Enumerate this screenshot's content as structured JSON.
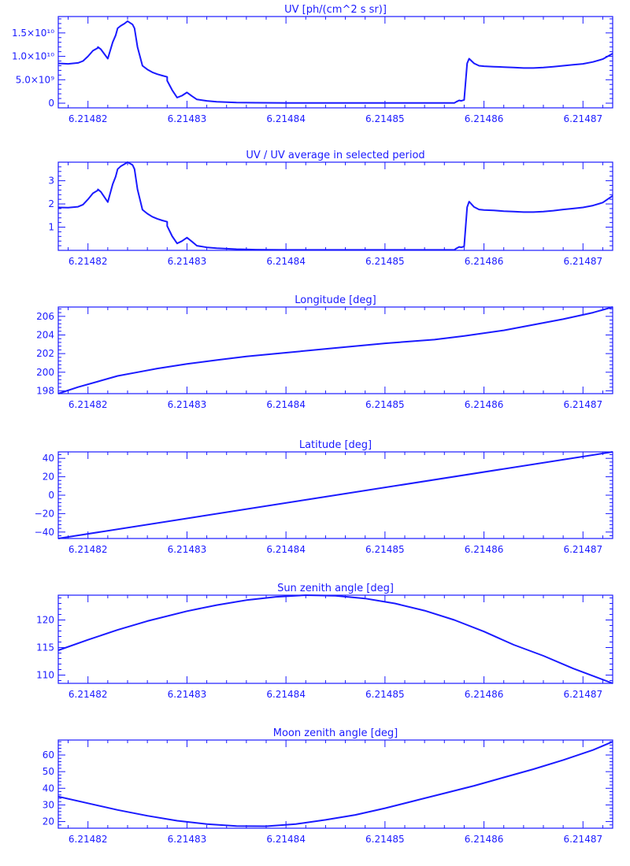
{
  "style": {
    "color": "#1a1aff",
    "background": "#ffffff"
  },
  "chart_data": [
    {
      "type": "line",
      "title": "UV [ph/(cm^2 s sr)]",
      "xlim": [
        6.214817,
        6.214873
      ],
      "ylim": [
        -1000000000.0,
        18500000000.0
      ],
      "x_ticks": [
        6.21482,
        6.21483,
        6.21484,
        6.21485,
        6.21486,
        6.21487
      ],
      "x_tick_labels": [
        "6.21482",
        "6.21483",
        "6.21484",
        "6.21485",
        "6.21486",
        "6.21487"
      ],
      "y_ticks": [
        0,
        5000000000.0,
        10000000000.0,
        15000000000.0
      ],
      "y_tick_labels": [
        "0",
        "5.0×10⁹",
        "1.0×10¹⁰",
        "1.5×10¹⁰"
      ],
      "series": [
        {
          "x": [
            6.214817,
            6.214818,
            6.214819,
            6.2148195,
            6.21482,
            6.2148205,
            6.214821,
            6.214821,
            6.2148213,
            6.214822,
            6.2148225,
            6.2148228,
            6.214823,
            6.2148233,
            6.2148237,
            6.214824,
            6.2148245,
            6.2148247,
            6.214825,
            6.2148255,
            6.214826,
            6.2148265,
            6.214827,
            6.2148275,
            6.214828,
            6.214828,
            6.2148285,
            6.214829,
            6.2148295,
            6.21483,
            6.2148305,
            6.214831,
            6.214832,
            6.214833,
            6.214835,
            6.214837,
            6.21484,
            6.214845,
            6.21485,
            6.214855,
            6.214857,
            6.2148572,
            6.2148575,
            6.2148577,
            6.214858,
            6.2148583,
            6.2148585,
            6.214859,
            6.2148595,
            6.21486,
            6.214861,
            6.214862,
            6.214863,
            6.214864,
            6.214865,
            6.214866,
            6.214867,
            6.214868,
            6.214869,
            6.21487,
            6.214871,
            6.214872,
            6.214873
          ],
          "y": [
            8500000000.0,
            8400000000.0,
            8600000000.0,
            9000000000.0,
            10000000000.0,
            11200000000.0,
            11800000000.0,
            12000000000.0,
            11500000000.0,
            9500000000.0,
            13000000000.0,
            14500000000.0,
            16000000000.0,
            16500000000.0,
            17000000000.0,
            17500000000.0,
            16800000000.0,
            16000000000.0,
            12000000000.0,
            8000000000.0,
            7200000000.0,
            6600000000.0,
            6200000000.0,
            5900000000.0,
            5600000000.0,
            4800000000.0,
            2800000000.0,
            1200000000.0,
            1600000000.0,
            2300000000.0,
            1500000000.0,
            800000000.0,
            500000000.0,
            300000000.0,
            150000000.0,
            100000000.0,
            50000000.0,
            50000000.0,
            50000000.0,
            50000000.0,
            50000000.0,
            300000000.0,
            600000000.0,
            500000000.0,
            700000000.0,
            8500000000.0,
            9500000000.0,
            8500000000.0,
            8000000000.0,
            7900000000.0,
            7800000000.0,
            7700000000.0,
            7600000000.0,
            7500000000.0,
            7500000000.0,
            7600000000.0,
            7800000000.0,
            8000000000.0,
            8200000000.0,
            8400000000.0,
            8800000000.0,
            9400000000.0,
            10600000000.0
          ]
        }
      ]
    },
    {
      "type": "line",
      "title": "UV / UV average in selected period",
      "xlim": [
        6.214817,
        6.214873
      ],
      "ylim": [
        0,
        3.8
      ],
      "x_ticks": [
        6.21482,
        6.21483,
        6.21484,
        6.21485,
        6.21486,
        6.21487
      ],
      "x_tick_labels": [
        "6.21482",
        "6.21483",
        "6.21484",
        "6.21485",
        "6.21486",
        "6.21487"
      ],
      "y_ticks": [
        1,
        2,
        3
      ],
      "y_tick_labels": [
        "1",
        "2",
        "3"
      ],
      "series": [
        {
          "x": [
            6.214817,
            6.214818,
            6.214819,
            6.2148195,
            6.21482,
            6.2148205,
            6.214821,
            6.214821,
            6.2148213,
            6.214822,
            6.2148225,
            6.2148228,
            6.214823,
            6.2148233,
            6.2148237,
            6.214824,
            6.2148245,
            6.2148247,
            6.214825,
            6.2148255,
            6.214826,
            6.2148265,
            6.214827,
            6.2148275,
            6.214828,
            6.214828,
            6.2148285,
            6.214829,
            6.2148295,
            6.21483,
            6.2148305,
            6.214831,
            6.214832,
            6.214833,
            6.214835,
            6.214837,
            6.21484,
            6.214845,
            6.21485,
            6.214855,
            6.214857,
            6.2148572,
            6.2148575,
            6.2148577,
            6.214858,
            6.2148583,
            6.2148585,
            6.214859,
            6.2148595,
            6.21486,
            6.214861,
            6.214862,
            6.214863,
            6.214864,
            6.214865,
            6.214866,
            6.214867,
            6.214868,
            6.214869,
            6.21487,
            6.214871,
            6.214872,
            6.214873
          ],
          "y": [
            1.85,
            1.84,
            1.88,
            1.97,
            2.2,
            2.46,
            2.59,
            2.63,
            2.52,
            2.08,
            2.85,
            3.18,
            3.5,
            3.62,
            3.72,
            3.8,
            3.68,
            3.5,
            2.63,
            1.75,
            1.58,
            1.45,
            1.36,
            1.29,
            1.23,
            1.05,
            0.61,
            0.3,
            0.4,
            0.55,
            0.38,
            0.2,
            0.13,
            0.09,
            0.05,
            0.03,
            0.02,
            0.02,
            0.02,
            0.02,
            0.02,
            0.08,
            0.15,
            0.13,
            0.17,
            1.86,
            2.1,
            1.87,
            1.76,
            1.74,
            1.72,
            1.69,
            1.67,
            1.65,
            1.65,
            1.67,
            1.71,
            1.76,
            1.8,
            1.85,
            1.93,
            2.06,
            2.35
          ]
        }
      ]
    },
    {
      "type": "line",
      "title": "Longitude [deg]",
      "xlim": [
        6.214817,
        6.214873
      ],
      "ylim": [
        197.7,
        207
      ],
      "x_ticks": [
        6.21482,
        6.21483,
        6.21484,
        6.21485,
        6.21486,
        6.21487
      ],
      "x_tick_labels": [
        "6.21482",
        "6.21483",
        "6.21484",
        "6.21485",
        "6.21486",
        "6.21487"
      ],
      "y_ticks": [
        198,
        200,
        202,
        204,
        206
      ],
      "y_tick_labels": [
        "198",
        "200",
        "202",
        "204",
        "206"
      ],
      "series": [
        {
          "x": [
            6.214817,
            6.214819,
            6.214821,
            6.214823,
            6.214825,
            6.214827,
            6.21483,
            6.214833,
            6.214836,
            6.21484,
            6.214845,
            6.21485,
            6.214855,
            6.214858,
            6.214862,
            6.214865,
            6.214868,
            6.214871,
            6.214873
          ],
          "y": [
            197.7,
            198.4,
            199.0,
            199.6,
            200.0,
            200.4,
            200.9,
            201.3,
            201.7,
            202.1,
            202.6,
            203.1,
            203.5,
            203.9,
            204.5,
            205.1,
            205.7,
            206.4,
            207.0
          ]
        }
      ]
    },
    {
      "type": "line",
      "title": "Latitude [deg]",
      "xlim": [
        6.214817,
        6.214873
      ],
      "ylim": [
        -47,
        47
      ],
      "x_ticks": [
        6.21482,
        6.21483,
        6.21484,
        6.21485,
        6.21486,
        6.21487
      ],
      "x_tick_labels": [
        "6.21482",
        "6.21483",
        "6.21484",
        "6.21485",
        "6.21486",
        "6.21487"
      ],
      "y_ticks": [
        -40,
        -20,
        0,
        20,
        40
      ],
      "y_tick_labels": [
        "−40",
        "−20",
        "0",
        "20",
        "40"
      ],
      "series": [
        {
          "x": [
            6.214817,
            6.214873
          ],
          "y": [
            -47,
            47
          ]
        }
      ]
    },
    {
      "type": "line",
      "title": "Sun zenith angle [deg]",
      "xlim": [
        6.214817,
        6.214873
      ],
      "ylim": [
        108.5,
        124.5
      ],
      "x_ticks": [
        6.21482,
        6.21483,
        6.21484,
        6.21485,
        6.21486,
        6.21487
      ],
      "x_tick_labels": [
        "6.21482",
        "6.21483",
        "6.21484",
        "6.21485",
        "6.21486",
        "6.21487"
      ],
      "y_ticks": [
        110,
        115,
        120
      ],
      "y_tick_labels": [
        "110",
        "115",
        "120"
      ],
      "series": [
        {
          "x": [
            6.214817,
            6.21482,
            6.214823,
            6.214826,
            6.21483,
            6.214833,
            6.214836,
            6.214839,
            6.214842,
            6.214845,
            6.214848,
            6.214851,
            6.214854,
            6.214857,
            6.21486,
            6.214863,
            6.214866,
            6.214869,
            6.214873
          ],
          "y": [
            114.5,
            116.4,
            118.2,
            119.8,
            121.6,
            122.7,
            123.6,
            124.2,
            124.5,
            124.4,
            123.9,
            123.0,
            121.7,
            120.0,
            117.9,
            115.5,
            113.5,
            111.2,
            108.5
          ]
        }
      ]
    },
    {
      "type": "line",
      "title": "Moon zenith angle [deg]",
      "xlim": [
        6.214817,
        6.214873
      ],
      "ylim": [
        16,
        69
      ],
      "x_ticks": [
        6.21482,
        6.21483,
        6.21484,
        6.21485,
        6.21486,
        6.21487
      ],
      "x_tick_labels": [
        "6.21482",
        "6.21483",
        "6.21484",
        "6.21485",
        "6.21486",
        "6.21487"
      ],
      "y_ticks": [
        20,
        30,
        40,
        50,
        60
      ],
      "y_tick_labels": [
        "20",
        "30",
        "40",
        "50",
        "60"
      ],
      "series": [
        {
          "x": [
            6.214817,
            6.21482,
            6.214823,
            6.214826,
            6.214829,
            6.214832,
            6.214835,
            6.214838,
            6.214841,
            6.214844,
            6.214847,
            6.21485,
            6.214853,
            6.214856,
            6.214859,
            6.214862,
            6.214865,
            6.214868,
            6.214871,
            6.214873
          ],
          "y": [
            35,
            31,
            27,
            23.5,
            20.5,
            18.5,
            17.3,
            17.2,
            18.5,
            21.0,
            24.0,
            28.0,
            32.5,
            37.0,
            41.5,
            46.5,
            51.5,
            57.0,
            63.0,
            68.0
          ]
        }
      ]
    }
  ]
}
